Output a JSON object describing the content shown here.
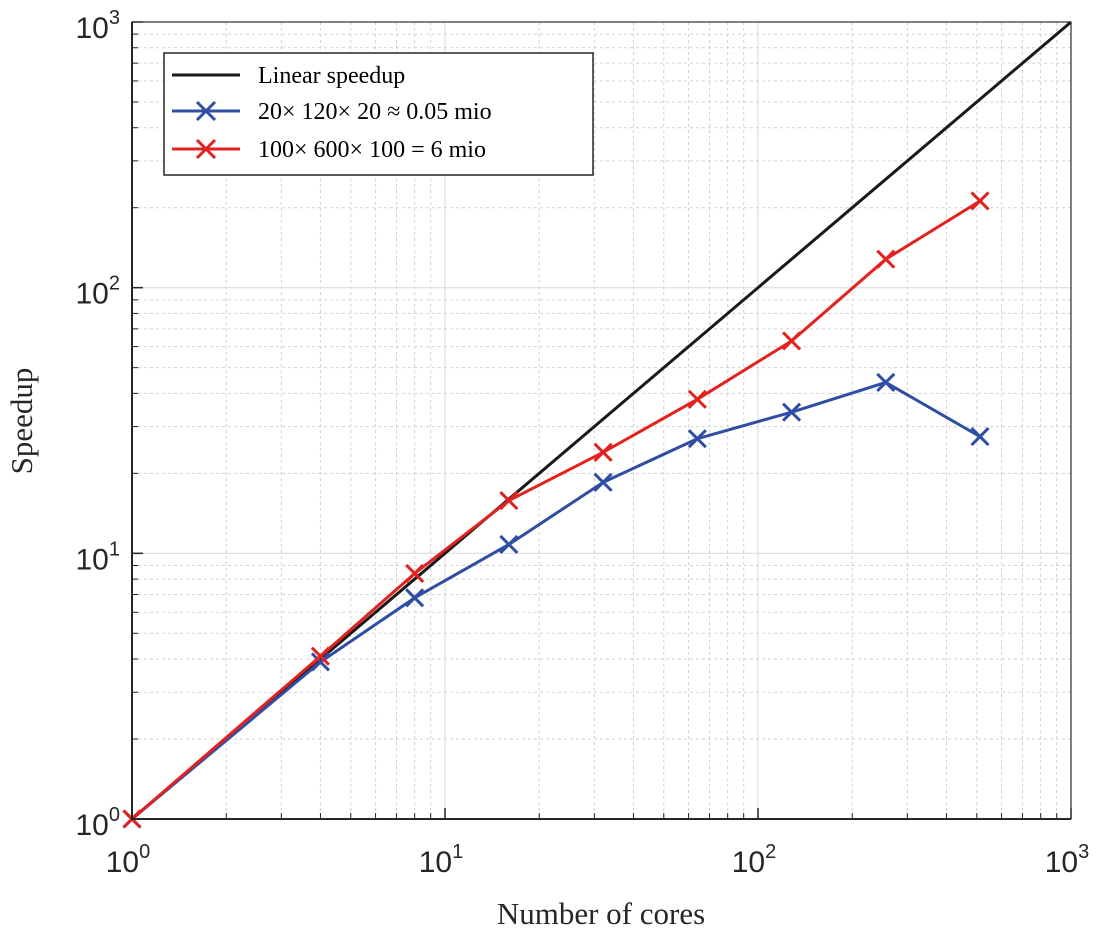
{
  "chart_data": {
    "type": "line",
    "xlabel": "Number of cores",
    "ylabel": "Speedup",
    "xscale": "log",
    "yscale": "log",
    "xlim": [
      1,
      1000
    ],
    "ylim": [
      1,
      1000
    ],
    "grid": true,
    "legend_position": "top-left",
    "x_ticks": [
      {
        "value": 1,
        "base": "10",
        "exp": "0"
      },
      {
        "value": 10,
        "base": "10",
        "exp": "1"
      },
      {
        "value": 100,
        "base": "10",
        "exp": "2"
      },
      {
        "value": 1000,
        "base": "10",
        "exp": "3"
      }
    ],
    "y_ticks": [
      {
        "value": 1,
        "base": "10",
        "exp": "0"
      },
      {
        "value": 10,
        "base": "10",
        "exp": "1"
      },
      {
        "value": 100,
        "base": "10",
        "exp": "2"
      },
      {
        "value": 1000,
        "base": "10",
        "exp": "3"
      }
    ],
    "series": [
      {
        "name": "Linear speedup",
        "color": "#1a1a1a",
        "marker": "none",
        "x": [
          1,
          1000
        ],
        "y": [
          1,
          1000
        ]
      },
      {
        "name": "20× 120× 20 ≈ 0.05 mio",
        "color": "#2f4ea3",
        "marker": "x",
        "x": [
          1,
          4,
          8,
          16,
          32,
          64,
          128,
          256,
          512
        ],
        "y": [
          1,
          3.9,
          6.8,
          10.8,
          18.5,
          27,
          34,
          44,
          27.5
        ]
      },
      {
        "name": "100× 600× 100 = 6 mio",
        "color": "#e3221f",
        "marker": "x",
        "x": [
          1,
          4,
          8,
          16,
          32,
          64,
          128,
          256,
          512
        ],
        "y": [
          1,
          4.1,
          8.4,
          15.8,
          24,
          38,
          63,
          128,
          212
        ]
      }
    ]
  }
}
